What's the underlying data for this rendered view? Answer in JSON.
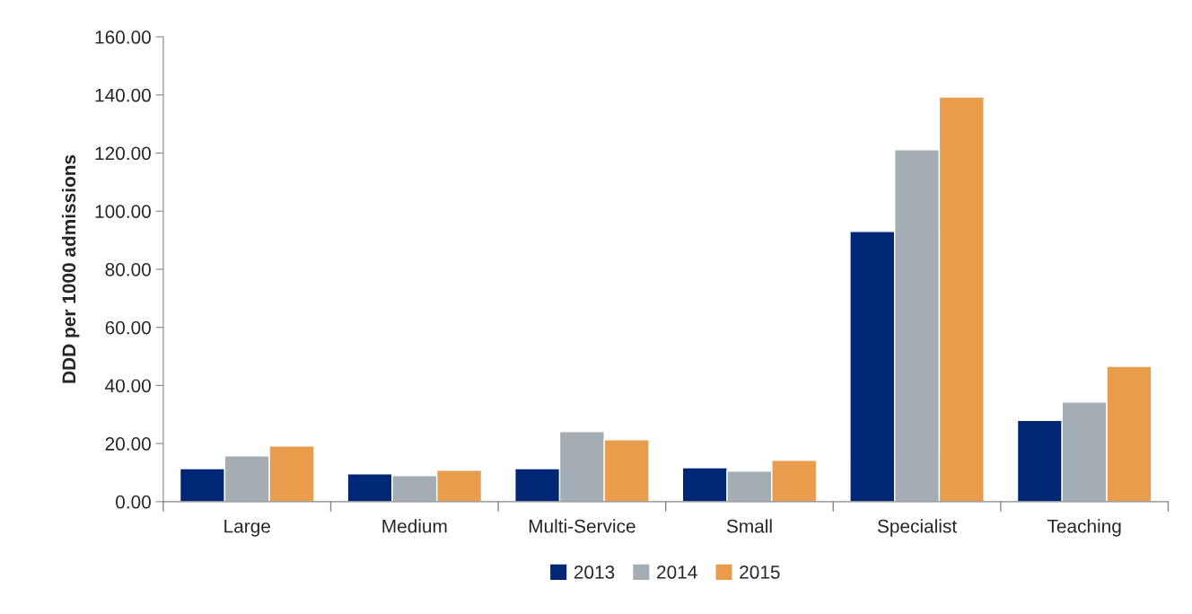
{
  "chart_data": {
    "type": "bar",
    "ylabel": "DDD per 1000 admissions",
    "categories": [
      "Large",
      "Medium",
      "Multi-Service",
      "Small",
      "Specialist",
      "Teaching"
    ],
    "series": [
      {
        "name": "2013",
        "color": "#002776",
        "values": [
          11.4,
          9.6,
          11.4,
          11.7,
          93.0,
          28.0
        ]
      },
      {
        "name": "2014",
        "color": "#a5adb4",
        "values": [
          15.8,
          9.0,
          24.1,
          10.5,
          121.1,
          34.3
        ]
      },
      {
        "name": "2015",
        "color": "#e99c4c",
        "values": [
          19.2,
          10.8,
          21.3,
          14.2,
          139.3,
          46.6
        ]
      }
    ],
    "ylim": [
      0,
      160
    ],
    "yticks": [
      {
        "value": 0,
        "label": "0.00"
      },
      {
        "value": 20,
        "label": "20.00"
      },
      {
        "value": 40,
        "label": "40.00"
      },
      {
        "value": 60,
        "label": "60.00"
      },
      {
        "value": 80,
        "label": "80.00"
      },
      {
        "value": 100,
        "label": "100.00"
      },
      {
        "value": 120,
        "label": "120.00"
      },
      {
        "value": 140,
        "label": "140.00"
      },
      {
        "value": 160,
        "label": "160.00"
      }
    ],
    "grid": false,
    "legend": "bottom"
  }
}
